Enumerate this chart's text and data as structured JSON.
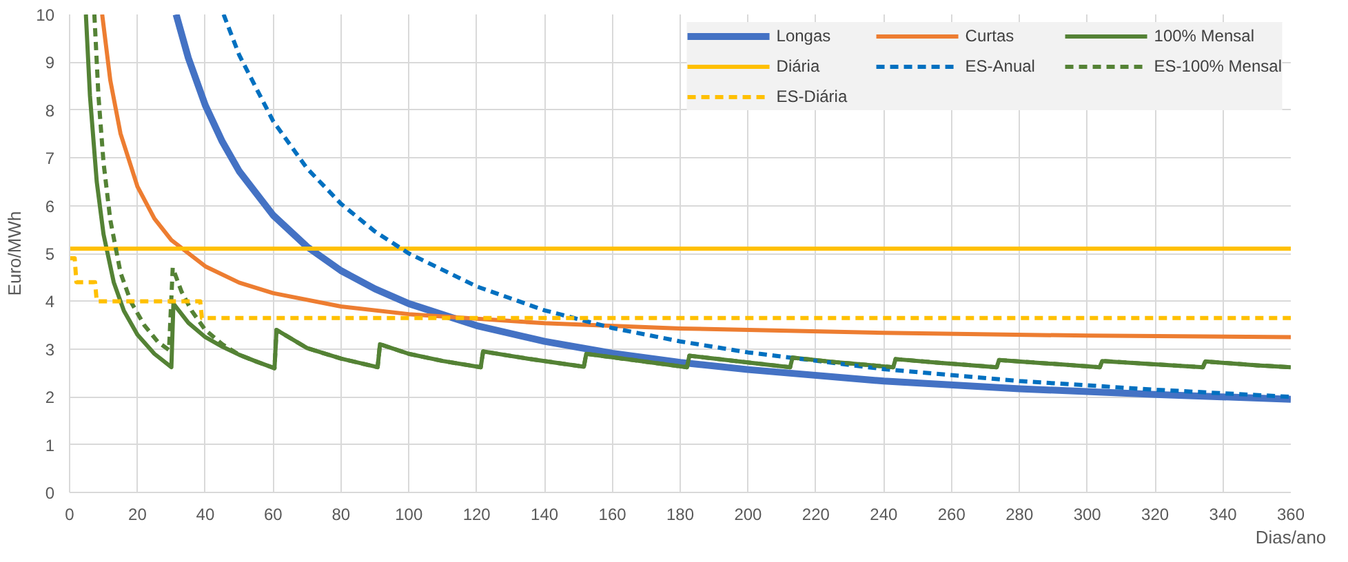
{
  "chart_data": {
    "type": "line",
    "xlabel": "Dias/ano",
    "ylabel": "Euro/MWh",
    "xlim": [
      0,
      360
    ],
    "ylim": [
      0,
      10
    ],
    "xticks": [
      0,
      20,
      40,
      60,
      80,
      100,
      120,
      140,
      160,
      180,
      200,
      220,
      240,
      260,
      280,
      300,
      320,
      340,
      360
    ],
    "yticks": [
      0,
      1,
      2,
      3,
      4,
      5,
      6,
      7,
      8,
      9,
      10
    ],
    "grid": true,
    "legend": "top right",
    "marker": "none",
    "series": [
      {
        "name": "Longas",
        "color": "#4472c4",
        "line_style": "solid",
        "x": [
          31.4,
          35,
          40,
          45,
          50,
          60,
          70,
          80,
          90,
          100,
          120,
          140,
          160,
          180,
          200,
          240,
          280,
          320,
          360
        ],
        "values": [
          10,
          9.09,
          8.1,
          7.34,
          6.72,
          5.8,
          5.14,
          4.64,
          4.26,
          3.95,
          3.49,
          3.16,
          2.91,
          2.72,
          2.57,
          2.33,
          2.17,
          2.05,
          1.95
        ]
      },
      {
        "name": "Curtas",
        "color": "#ed7d31",
        "line_style": "solid",
        "x": [
          9.6,
          12,
          15,
          20,
          25,
          30,
          40,
          50,
          60,
          80,
          100,
          140,
          180,
          240,
          300,
          360
        ],
        "values": [
          10,
          8.62,
          7.51,
          6.4,
          5.73,
          5.28,
          4.73,
          4.39,
          4.17,
          3.89,
          3.73,
          3.54,
          3.43,
          3.34,
          3.28,
          3.25
        ]
      },
      {
        "name": "100% Mensal",
        "color": "#548235",
        "line_style": "solid",
        "x": [
          4.8,
          6,
          8,
          10,
          13,
          16,
          20,
          25,
          30,
          30.6,
          35,
          40,
          45,
          50,
          55,
          60.4,
          61,
          70,
          80,
          90.8,
          91.5,
          100,
          110,
          121.2,
          121.9,
          135,
          151.6,
          152.3,
          165,
          182,
          182.7,
          195,
          212.4,
          213.1,
          225,
          242.8,
          243.5,
          255,
          273.3,
          274,
          290,
          303.7,
          304.4,
          320,
          334.1,
          334.8,
          350,
          360
        ],
        "values": [
          10,
          8.3,
          6.5,
          5.4,
          4.4,
          3.8,
          3.3,
          2.9,
          2.62,
          3.95,
          3.55,
          3.25,
          3.05,
          2.88,
          2.74,
          2.6,
          3.4,
          3.02,
          2.8,
          2.62,
          3.1,
          2.9,
          2.75,
          2.62,
          2.95,
          2.8,
          2.63,
          2.9,
          2.78,
          2.62,
          2.86,
          2.76,
          2.62,
          2.82,
          2.73,
          2.62,
          2.79,
          2.72,
          2.62,
          2.77,
          2.69,
          2.62,
          2.75,
          2.68,
          2.62,
          2.74,
          2.66,
          2.62
        ]
      },
      {
        "name": "Diária",
        "color": "#ffc000",
        "line_style": "solid",
        "x": [
          0,
          360
        ],
        "values": [
          5.1,
          5.1
        ]
      },
      {
        "name": "ES-Anual",
        "color": "#0070c0",
        "line_style": "dashed",
        "x": [
          45.4,
          50,
          60,
          70,
          80,
          90,
          100,
          120,
          140,
          160,
          180,
          200,
          240,
          280,
          320,
          360
        ],
        "values": [
          10,
          9.15,
          7.77,
          6.78,
          6.04,
          5.46,
          5.0,
          4.31,
          3.81,
          3.44,
          3.16,
          2.93,
          2.58,
          2.33,
          2.15,
          2.0
        ]
      },
      {
        "name": "ES-100% Mensal",
        "color": "#548235",
        "line_style": "dashed",
        "x": [
          7.3,
          8.5,
          10,
          12,
          15,
          18,
          22,
          26,
          29.3,
          30.4,
          33,
          36,
          40,
          45,
          50,
          55,
          60.4,
          61,
          70,
          80,
          90.8,
          91.5,
          100,
          110,
          121.2,
          121.9,
          135,
          151.6,
          152.3,
          165,
          182,
          182.7,
          195,
          212.4,
          213.1,
          225,
          242.8,
          243.5,
          255,
          273.3,
          274,
          290,
          303.7,
          304.4,
          320,
          334.1,
          334.8,
          350,
          360
        ],
        "values": [
          10,
          8.3,
          6.9,
          5.7,
          4.6,
          4.0,
          3.5,
          3.15,
          2.98,
          4.7,
          4.2,
          3.8,
          3.4,
          3.1,
          2.88,
          2.74,
          2.6,
          3.4,
          3.02,
          2.8,
          2.62,
          3.1,
          2.9,
          2.75,
          2.62,
          2.95,
          2.8,
          2.63,
          2.9,
          2.78,
          2.62,
          2.86,
          2.76,
          2.62,
          2.82,
          2.73,
          2.62,
          2.79,
          2.72,
          2.62,
          2.77,
          2.69,
          2.62,
          2.75,
          2.68,
          2.62,
          2.74,
          2.66,
          2.62
        ]
      },
      {
        "name": "ES-Diária",
        "color": "#ffc000",
        "line_style": "dashed",
        "x": [
          0,
          1.5,
          2,
          7.5,
          8,
          38.5,
          39,
          360
        ],
        "values": [
          4.9,
          4.9,
          4.4,
          4.4,
          4.0,
          4.0,
          3.65,
          3.65
        ]
      }
    ]
  }
}
